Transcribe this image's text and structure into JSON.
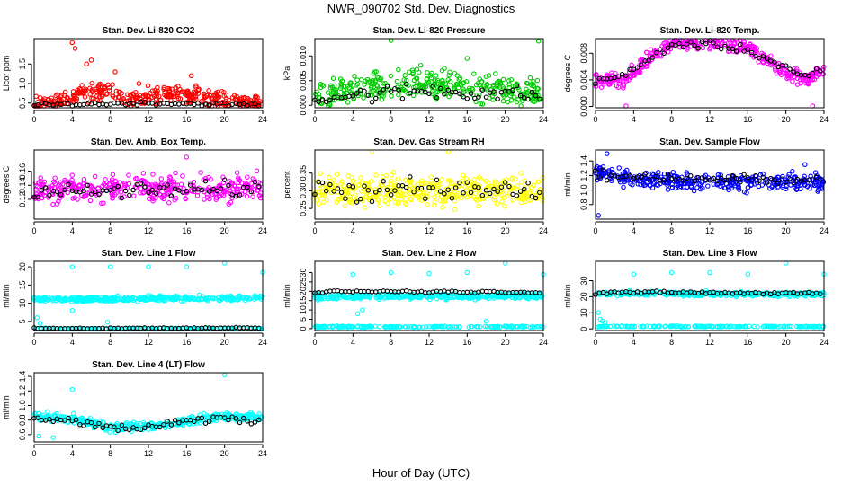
{
  "figure": {
    "title": "NWR_090702  Std. Dev. Diagnostics",
    "xlabel": "Hour of Day (UTC)"
  },
  "chart_data": [
    {
      "type": "scatter",
      "title": "Stan. Dev. Li-820 CO2",
      "ylabel": "Licor ppm",
      "color": "#ff0000",
      "xlim": [
        0,
        24
      ],
      "xticks": [
        0,
        4,
        8,
        12,
        16,
        20,
        24
      ],
      "ylim": [
        0.38,
        2.15
      ],
      "yticks": [
        0.5,
        1.0,
        1.5
      ],
      "ytick_labels": [
        "0.5",
        "1.0",
        "1.5"
      ],
      "series_colored": {
        "base": 0.5,
        "spread": 0.18,
        "trend": [
          [
            0,
            0.5
          ],
          [
            3,
            0.55
          ],
          [
            5,
            0.75
          ],
          [
            8,
            0.8
          ],
          [
            10,
            0.6
          ],
          [
            13,
            0.75
          ],
          [
            16,
            0.7
          ],
          [
            20,
            0.6
          ],
          [
            24,
            0.45
          ]
        ],
        "spikes": [
          [
            4,
            2.05
          ],
          [
            4.3,
            1.9
          ],
          [
            5.5,
            1.5
          ],
          [
            6,
            1.6
          ],
          [
            8.5,
            1.3
          ],
          [
            11,
            1.0
          ],
          [
            16.5,
            1.2
          ],
          [
            17,
            0.95
          ]
        ]
      },
      "series_black": {
        "base": 0.46,
        "spread": 0.04,
        "trend": [
          [
            0,
            0.45
          ],
          [
            12,
            0.5
          ],
          [
            24,
            0.45
          ]
        ]
      }
    },
    {
      "type": "scatter",
      "title": "Stan. Dev. Li-820 Pressure",
      "ylabel": "kPa",
      "color": "#00cc00",
      "xlim": [
        0,
        24
      ],
      "xticks": [
        0,
        4,
        8,
        12,
        16,
        20,
        24
      ],
      "ylim": [
        -0.0005,
        0.0135
      ],
      "yticks": [
        0.0,
        0.005,
        0.01
      ],
      "ytick_labels": [
        "0.000",
        "0.005",
        "0.010"
      ],
      "series_colored": {
        "base": 0.003,
        "spread": 0.0025,
        "trend": [
          [
            0,
            0.0015
          ],
          [
            4,
            0.003
          ],
          [
            8,
            0.004
          ],
          [
            12,
            0.0045
          ],
          [
            16,
            0.0035
          ],
          [
            20,
            0.003
          ],
          [
            24,
            0.0025
          ]
        ],
        "spikes": [
          [
            8,
            0.0133
          ],
          [
            23.5,
            0.013
          ],
          [
            16,
            0.0095
          ]
        ]
      },
      "series_black": {
        "base": 0.002,
        "spread": 0.0015,
        "trend": [
          [
            0,
            0.0015
          ],
          [
            12,
            0.003
          ],
          [
            24,
            0.002
          ]
        ]
      }
    },
    {
      "type": "scatter",
      "title": "Stan. Dev. Li-820 Temp.",
      "ylabel": "degrees C",
      "color": "#ff00ff",
      "xlim": [
        0,
        24
      ],
      "xticks": [
        0,
        4,
        8,
        12,
        16,
        20,
        24
      ],
      "ylim": [
        -0.0002,
        0.0102
      ],
      "yticks": [
        0.0,
        0.004,
        0.008
      ],
      "ytick_labels": [
        "0.000",
        "0.004",
        "0.008"
      ],
      "series_colored": {
        "base": 0.006,
        "spread": 0.001,
        "trend": [
          [
            0,
            0.004
          ],
          [
            3,
            0.004
          ],
          [
            5,
            0.0065
          ],
          [
            8,
            0.0095
          ],
          [
            12,
            0.0095
          ],
          [
            16,
            0.009
          ],
          [
            19,
            0.006
          ],
          [
            22,
            0.004
          ],
          [
            24,
            0.0055
          ]
        ],
        "spikes": [
          [
            3.2,
            0.0
          ],
          [
            22.8,
            0.0
          ]
        ]
      },
      "series_black": {
        "base": 0.006,
        "spread": 0.0005,
        "trend": [
          [
            0,
            0.004
          ],
          [
            3,
            0.0045
          ],
          [
            5,
            0.0065
          ],
          [
            8,
            0.0093
          ],
          [
            12,
            0.0093
          ],
          [
            16,
            0.0085
          ],
          [
            19,
            0.0065
          ],
          [
            22,
            0.0045
          ],
          [
            24,
            0.0055
          ]
        ]
      }
    },
    {
      "type": "scatter",
      "title": "Stan. Dev. Amb. Box Temp.",
      "ylabel": "degrees C",
      "color": "#ff00ff",
      "xlim": [
        0,
        24
      ],
      "xticks": [
        0,
        4,
        8,
        12,
        16,
        20,
        24
      ],
      "ylim": [
        0.092,
        0.19
      ],
      "yticks": [
        0.12,
        0.14,
        0.16
      ],
      "ytick_labels": [
        "0.12",
        "0.14",
        "0.16"
      ],
      "series_colored": {
        "base": 0.135,
        "spread": 0.016,
        "trend": [
          [
            0,
            0.133
          ],
          [
            12,
            0.135
          ],
          [
            24,
            0.138
          ]
        ],
        "spikes": [
          [
            16,
            0.18
          ]
        ]
      },
      "series_black": {
        "base": 0.133,
        "spread": 0.01,
        "trend": [
          [
            0,
            0.13
          ],
          [
            24,
            0.135
          ]
        ]
      }
    },
    {
      "type": "scatter",
      "title": "Stan. Dev. Gas Stream RH",
      "ylabel": "percent",
      "color": "#ffff00",
      "xlim": [
        0,
        24
      ],
      "xticks": [
        0,
        4,
        8,
        12,
        16,
        20,
        24
      ],
      "ylim": [
        0.22,
        0.415
      ],
      "yticks": [
        0.25,
        0.3,
        0.35
      ],
      "ytick_labels": [
        "0.25",
        "0.30",
        "0.35"
      ],
      "series_colored": {
        "base": 0.3,
        "spread": 0.035,
        "trend": [
          [
            0,
            0.3
          ],
          [
            24,
            0.3
          ]
        ],
        "spikes": [
          [
            14,
            0.41
          ],
          [
            6,
            0.41
          ]
        ]
      },
      "series_black": {
        "base": 0.3,
        "spread": 0.03,
        "trend": [
          [
            0,
            0.3
          ],
          [
            24,
            0.3
          ]
        ]
      }
    },
    {
      "type": "scatter",
      "title": "Stan. Dev. Sample Flow",
      "ylabel": "ml/min",
      "color": "#0000ff",
      "xlim": [
        0,
        24
      ],
      "xticks": [
        0,
        4,
        8,
        12,
        16,
        20,
        24
      ],
      "ylim": [
        0.6,
        1.55
      ],
      "yticks": [
        0.8,
        1.0,
        1.2,
        1.4
      ],
      "ytick_labels": [
        "0.8",
        "1.0",
        "1.2",
        "1.4"
      ],
      "series_colored": {
        "base": 1.12,
        "spread": 0.1,
        "trend": [
          [
            0,
            1.25
          ],
          [
            4,
            1.15
          ],
          [
            12,
            1.1
          ],
          [
            20,
            1.12
          ],
          [
            24,
            1.1
          ]
        ],
        "spikes": [
          [
            0.3,
            0.65
          ],
          [
            1.2,
            1.5
          ],
          [
            22,
            1.35
          ]
        ]
      },
      "series_black": {
        "base": 1.12,
        "spread": 0.06,
        "trend": [
          [
            0,
            1.2
          ],
          [
            24,
            1.12
          ]
        ]
      }
    },
    {
      "type": "scatter",
      "title": "Stan. Dev. Line 1 Flow",
      "ylabel": "ml/min",
      "color": "#00ffff",
      "xlim": [
        0,
        24
      ],
      "xticks": [
        0,
        4,
        8,
        12,
        16,
        20,
        24
      ],
      "ylim": [
        2.5,
        21.5
      ],
      "yticks": [
        5,
        10,
        15,
        20
      ],
      "ytick_labels": [
        "5",
        "10",
        "15",
        "20"
      ],
      "series_colored": {
        "base": 11.2,
        "spread": 0.6,
        "trend": [
          [
            0,
            11
          ],
          [
            24,
            11.5
          ]
        ],
        "low": 2.8,
        "low_spread": 0.3,
        "spikes": [
          [
            4,
            20
          ],
          [
            8,
            20
          ],
          [
            12,
            20
          ],
          [
            16,
            20
          ],
          [
            20,
            21.2
          ],
          [
            24,
            18.5
          ],
          [
            0.3,
            6
          ],
          [
            0.6,
            4.5
          ],
          [
            7.7,
            4.8
          ],
          [
            4,
            8
          ]
        ]
      },
      "series_black": {
        "base": 3.2,
        "spread": 0.15,
        "trend": [
          [
            0,
            3.1
          ],
          [
            24,
            3.2
          ]
        ]
      }
    },
    {
      "type": "scatter",
      "title": "Stan. Dev. Line 2 Flow",
      "ylabel": "ml/min",
      "color": "#00ffff",
      "xlim": [
        0,
        24
      ],
      "xticks": [
        0,
        4,
        8,
        12,
        16,
        20,
        24
      ],
      "ylim": [
        -1,
        36
      ],
      "yticks": [
        0,
        5,
        10,
        15,
        20,
        25,
        30
      ],
      "ytick_labels": [
        "0",
        "5",
        "10",
        "15",
        "20",
        "25",
        "30"
      ],
      "series_colored": {
        "base": 17.5,
        "spread": 1.2,
        "trend": [
          [
            0,
            17
          ],
          [
            24,
            17.5
          ]
        ],
        "low": 1.0,
        "low_spread": 0.3,
        "spikes": [
          [
            4,
            29
          ],
          [
            8,
            30
          ],
          [
            12,
            29.5
          ],
          [
            16,
            30
          ],
          [
            20,
            35
          ],
          [
            24,
            29
          ],
          [
            5,
            10
          ],
          [
            4.5,
            8
          ],
          [
            18,
            4
          ]
        ]
      },
      "series_black": {
        "base": 19.8,
        "spread": 0.5,
        "trend": [
          [
            0,
            19
          ],
          [
            2,
            20
          ],
          [
            24,
            19.5
          ]
        ]
      }
    },
    {
      "type": "scatter",
      "title": "Stan. Dev. Line 3 Flow",
      "ylabel": "ml/min",
      "color": "#00ffff",
      "xlim": [
        0,
        24
      ],
      "xticks": [
        0,
        4,
        8,
        12,
        16,
        20,
        24
      ],
      "ylim": [
        -1,
        42
      ],
      "yticks": [
        0,
        10,
        20,
        30
      ],
      "ytick_labels": [
        "0",
        "10",
        "20",
        "30"
      ],
      "series_colored": {
        "base": 21,
        "spread": 1.2,
        "trend": [
          [
            0,
            22
          ],
          [
            24,
            21.5
          ]
        ],
        "low": 1.5,
        "low_spread": 0.3,
        "spikes": [
          [
            4,
            34
          ],
          [
            8,
            35
          ],
          [
            12,
            35
          ],
          [
            16,
            34
          ],
          [
            20,
            41
          ],
          [
            24,
            34
          ],
          [
            0.3,
            10
          ],
          [
            0.5,
            6
          ],
          [
            0.7,
            5
          ],
          [
            1,
            4
          ]
        ]
      },
      "series_black": {
        "base": 22,
        "spread": 0.6,
        "trend": [
          [
            0,
            22
          ],
          [
            2,
            23
          ],
          [
            24,
            22
          ]
        ]
      }
    },
    {
      "type": "scatter",
      "title": "Stan. Dev. Line 4 (LT) Flow",
      "ylabel": "ml/min",
      "color": "#00ffff",
      "xlim": [
        0,
        24
      ],
      "xticks": [
        0,
        4,
        8,
        12,
        16,
        20,
        24
      ],
      "ylim": [
        0.5,
        1.45
      ],
      "yticks": [
        0.6,
        0.8,
        1.0,
        1.2,
        1.4
      ],
      "ytick_labels": [
        "0.6",
        "0.8",
        "1.0",
        "1.2",
        "1.4"
      ],
      "series_colored": {
        "base": 0.8,
        "spread": 0.05,
        "trend": [
          [
            0,
            0.85
          ],
          [
            4,
            0.82
          ],
          [
            8,
            0.7
          ],
          [
            12,
            0.72
          ],
          [
            16,
            0.78
          ],
          [
            20,
            0.85
          ],
          [
            24,
            0.85
          ]
        ],
        "spikes": [
          [
            4,
            1.22
          ],
          [
            20,
            1.42
          ],
          [
            0.5,
            0.58
          ],
          [
            2,
            0.56
          ]
        ]
      },
      "series_black": {
        "base": 0.78,
        "spread": 0.04,
        "trend": [
          [
            0,
            0.8
          ],
          [
            4,
            0.8
          ],
          [
            8,
            0.68
          ],
          [
            12,
            0.7
          ],
          [
            16,
            0.78
          ],
          [
            20,
            0.82
          ],
          [
            24,
            0.78
          ]
        ]
      }
    }
  ]
}
